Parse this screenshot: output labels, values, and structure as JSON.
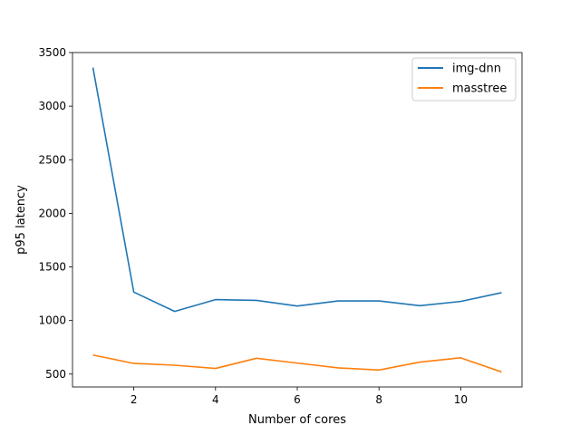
{
  "chart_data": {
    "type": "line",
    "title": "",
    "xlabel": "Number of cores",
    "ylabel": "p95 latency",
    "xlim": [
      0.5,
      11.5
    ],
    "ylim": [
      380,
      3500
    ],
    "xticks": [
      2,
      4,
      6,
      8,
      10
    ],
    "yticks": [
      500,
      1000,
      1500,
      2000,
      2500,
      3000,
      3500
    ],
    "grid": false,
    "legend_position": "top-right",
    "x": [
      1,
      2,
      3,
      4,
      5,
      6,
      7,
      8,
      9,
      10,
      11
    ],
    "series": [
      {
        "name": "img-dnn",
        "color": "#1f77b4",
        "values": [
          3360,
          1265,
          1085,
          1195,
          1188,
          1135,
          1183,
          1183,
          1138,
          1178,
          1260
        ]
      },
      {
        "name": "masstree",
        "color": "#ff7f0e",
        "values": [
          678,
          600,
          583,
          553,
          648,
          603,
          558,
          538,
          612,
          652,
          520
        ]
      }
    ]
  }
}
